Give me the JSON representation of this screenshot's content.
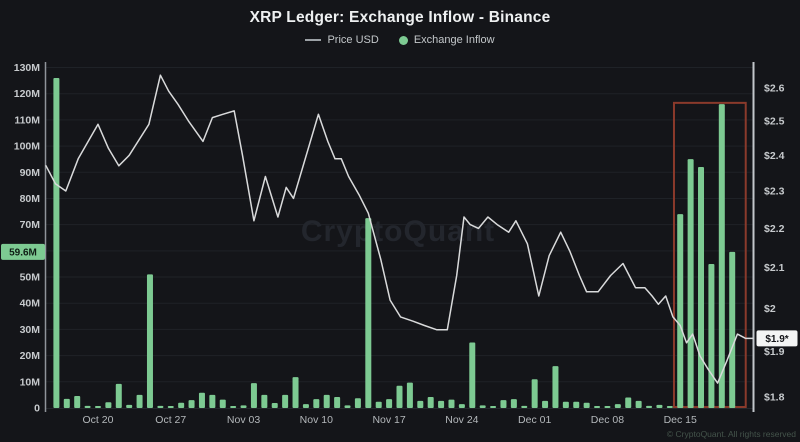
{
  "header": {
    "title": "XRP Ledger: Exchange Inflow - Binance",
    "legend": [
      {
        "label": "Price USD",
        "type": "line",
        "color": "#9ca1a6"
      },
      {
        "label": "Exchange Inflow",
        "type": "dot",
        "color": "#7dca92"
      }
    ]
  },
  "colors": {
    "background": "#141519",
    "grid": "#1f2227",
    "baseline": "#24272c",
    "bar": "#7dca92",
    "line": "#d9dadb",
    "axis_text": "#c7cacd",
    "x_text": "#b4b8bb",
    "left_axis_line": "#8f949a",
    "right_axis_line": "#c2c6cb",
    "highlight_box": "#8a3a2b",
    "inflow_badge_bg": "#7dca92",
    "inflow_badge_text": "#0f1d15",
    "price_badge_bg": "#f4f5f5",
    "price_badge_text": "#141519",
    "watermark": "#23262d",
    "copyright": "#44544b"
  },
  "chart_data": {
    "type": "bar+line",
    "title": "XRP Ledger: Exchange Inflow - Binance",
    "legend_position": "top",
    "grid": "horizontal-faint",
    "bar_series": {
      "name": "Exchange Inflow",
      "unit": "M",
      "dates": [
        "Oct 16",
        "Oct 17",
        "Oct 18",
        "Oct 19",
        "Oct 20",
        "Oct 21",
        "Oct 22",
        "Oct 23",
        "Oct 24",
        "Oct 25",
        "Oct 26",
        "Oct 27",
        "Oct 28",
        "Oct 29",
        "Oct 30",
        "Oct 31",
        "Nov 01",
        "Nov 02",
        "Nov 03",
        "Nov 04",
        "Nov 05",
        "Nov 06",
        "Nov 07",
        "Nov 08",
        "Nov 09",
        "Nov 10",
        "Nov 11",
        "Nov 12",
        "Nov 13",
        "Nov 14",
        "Nov 15",
        "Nov 16",
        "Nov 17",
        "Nov 18",
        "Nov 19",
        "Nov 20",
        "Nov 21",
        "Nov 22",
        "Nov 23",
        "Nov 24",
        "Nov 25",
        "Nov 26",
        "Nov 27",
        "Nov 28",
        "Nov 29",
        "Nov 30",
        "Dec 01",
        "Dec 02",
        "Dec 03",
        "Dec 04",
        "Dec 05",
        "Dec 06",
        "Dec 07",
        "Dec 08",
        "Dec 09",
        "Dec 10",
        "Dec 11",
        "Dec 12",
        "Dec 13",
        "Dec 14",
        "Dec 15",
        "Dec 16",
        "Dec 17",
        "Dec 18",
        "Dec 19",
        "Dec 20"
      ],
      "values": [
        126,
        3.5,
        4.6,
        0.8,
        0.6,
        2.2,
        9.2,
        1.2,
        5.0,
        51,
        0.8,
        0.6,
        2.0,
        3.0,
        5.8,
        5.0,
        3.2,
        0.5,
        1.0,
        9.5,
        5.0,
        1.9,
        5.0,
        11.8,
        1.5,
        3.4,
        5.0,
        4.2,
        1.0,
        3.7,
        72.5,
        2.4,
        3.4,
        8.5,
        9.7,
        2.7,
        4.2,
        2.7,
        3.2,
        1.5,
        25,
        1.0,
        0.5,
        3.0,
        3.4,
        0.8,
        11,
        2.7,
        16,
        2.4,
        2.4,
        2.0,
        0.5,
        0.7,
        1.5,
        4.0,
        2.7,
        0.8,
        1.2,
        0.5,
        74,
        95,
        92,
        55,
        116,
        59.6
      ]
    },
    "line_series": {
      "name": "Price USD",
      "unit": "USD",
      "points": [
        [
          -1.0,
          2.37
        ],
        [
          -0.1,
          2.32
        ],
        [
          0.9,
          2.3
        ],
        [
          2.1,
          2.39
        ],
        [
          4.0,
          2.49
        ],
        [
          5.0,
          2.42
        ],
        [
          6.0,
          2.37
        ],
        [
          7.0,
          2.4
        ],
        [
          8.9,
          2.49
        ],
        [
          10.0,
          2.64
        ],
        [
          10.8,
          2.59
        ],
        [
          11.7,
          2.55
        ],
        [
          12.7,
          2.5
        ],
        [
          14.1,
          2.44
        ],
        [
          15.0,
          2.51
        ],
        [
          16.0,
          2.52
        ],
        [
          17.1,
          2.53
        ],
        [
          17.9,
          2.4
        ],
        [
          19.0,
          2.22
        ],
        [
          20.1,
          2.34
        ],
        [
          21.3,
          2.23
        ],
        [
          22.1,
          2.31
        ],
        [
          22.8,
          2.28
        ],
        [
          25.2,
          2.52
        ],
        [
          26.1,
          2.44
        ],
        [
          26.8,
          2.39
        ],
        [
          27.4,
          2.39
        ],
        [
          28.1,
          2.34
        ],
        [
          29.1,
          2.29
        ],
        [
          30.0,
          2.24
        ],
        [
          31.2,
          2.12
        ],
        [
          32.1,
          2.02
        ],
        [
          33.1,
          1.98
        ],
        [
          34.3,
          1.97
        ],
        [
          35.4,
          1.96
        ],
        [
          36.6,
          1.95
        ],
        [
          37.6,
          1.95
        ],
        [
          38.5,
          2.08
        ],
        [
          39.2,
          2.23
        ],
        [
          39.8,
          2.21
        ],
        [
          40.6,
          2.2
        ],
        [
          41.5,
          2.23
        ],
        [
          42.4,
          2.21
        ],
        [
          43.5,
          2.19
        ],
        [
          44.2,
          2.22
        ],
        [
          45.3,
          2.16
        ],
        [
          46.4,
          2.03
        ],
        [
          47.4,
          2.13
        ],
        [
          48.5,
          2.19
        ],
        [
          49.4,
          2.14
        ],
        [
          50.3,
          2.08
        ],
        [
          51.0,
          2.04
        ],
        [
          52.1,
          2.04
        ],
        [
          53.3,
          2.08
        ],
        [
          54.5,
          2.11
        ],
        [
          55.7,
          2.05
        ],
        [
          56.6,
          2.05
        ],
        [
          57.3,
          2.03
        ],
        [
          57.9,
          2.01
        ],
        [
          58.6,
          2.03
        ],
        [
          59.3,
          1.98
        ],
        [
          60.0,
          1.96
        ],
        [
          60.6,
          1.92
        ],
        [
          61.2,
          1.94
        ],
        [
          61.9,
          1.89
        ],
        [
          62.7,
          1.86
        ],
        [
          63.6,
          1.83
        ],
        [
          64.5,
          1.88
        ],
        [
          65.5,
          1.94
        ],
        [
          66.3,
          1.93
        ],
        [
          67.0,
          1.93
        ]
      ]
    },
    "left_axis": {
      "series": "Exchange Inflow",
      "scale": "linear",
      "range": [
        0,
        130
      ],
      "tick_labels": [
        "130M",
        "120M",
        "110M",
        "100M",
        "90M",
        "80M",
        "70M",
        "50M",
        "40M",
        "30M",
        "20M",
        "10M",
        "0"
      ],
      "tick_values": [
        130,
        120,
        110,
        100,
        90,
        80,
        70,
        50,
        40,
        30,
        20,
        10,
        0
      ],
      "grid_values": [
        130,
        120,
        110,
        100,
        90,
        80,
        70,
        60,
        50,
        40,
        30,
        20,
        10
      ]
    },
    "right_axis": {
      "series": "Price USD",
      "scale": "log",
      "range": [
        1.78,
        2.68
      ],
      "tick_labels": [
        "$2.6",
        "$2.5",
        "$2.4",
        "$2.3",
        "$2.2",
        "$2.1",
        "$2",
        "$1.9",
        "$1.8"
      ],
      "tick_values": [
        2.6,
        2.5,
        2.4,
        2.3,
        2.2,
        2.1,
        2.0,
        1.9,
        1.8
      ]
    },
    "x_axis": {
      "ticks": [
        {
          "label": "Oct 20",
          "day": 4
        },
        {
          "label": "Oct 27",
          "day": 11
        },
        {
          "label": "Nov 03",
          "day": 18
        },
        {
          "label": "Nov 10",
          "day": 25
        },
        {
          "label": "Nov 17",
          "day": 32
        },
        {
          "label": "Nov 24",
          "day": 39
        },
        {
          "label": "Dec 01",
          "day": 46
        },
        {
          "label": "Dec 08",
          "day": 53
        },
        {
          "label": "Dec 15",
          "day": 60
        }
      ]
    },
    "annotations": {
      "highlight_box": {
        "from_day": 59.4,
        "to_day": 66.3,
        "top_value": 116.5
      },
      "inflow_badge": {
        "label": "59.6M",
        "value": 59.6
      },
      "price_badge": {
        "label": "$1.9*",
        "value": 1.93
      }
    },
    "watermark": "CryptoQuant",
    "copyright": "© CryptoQuant. All rights reserved"
  }
}
